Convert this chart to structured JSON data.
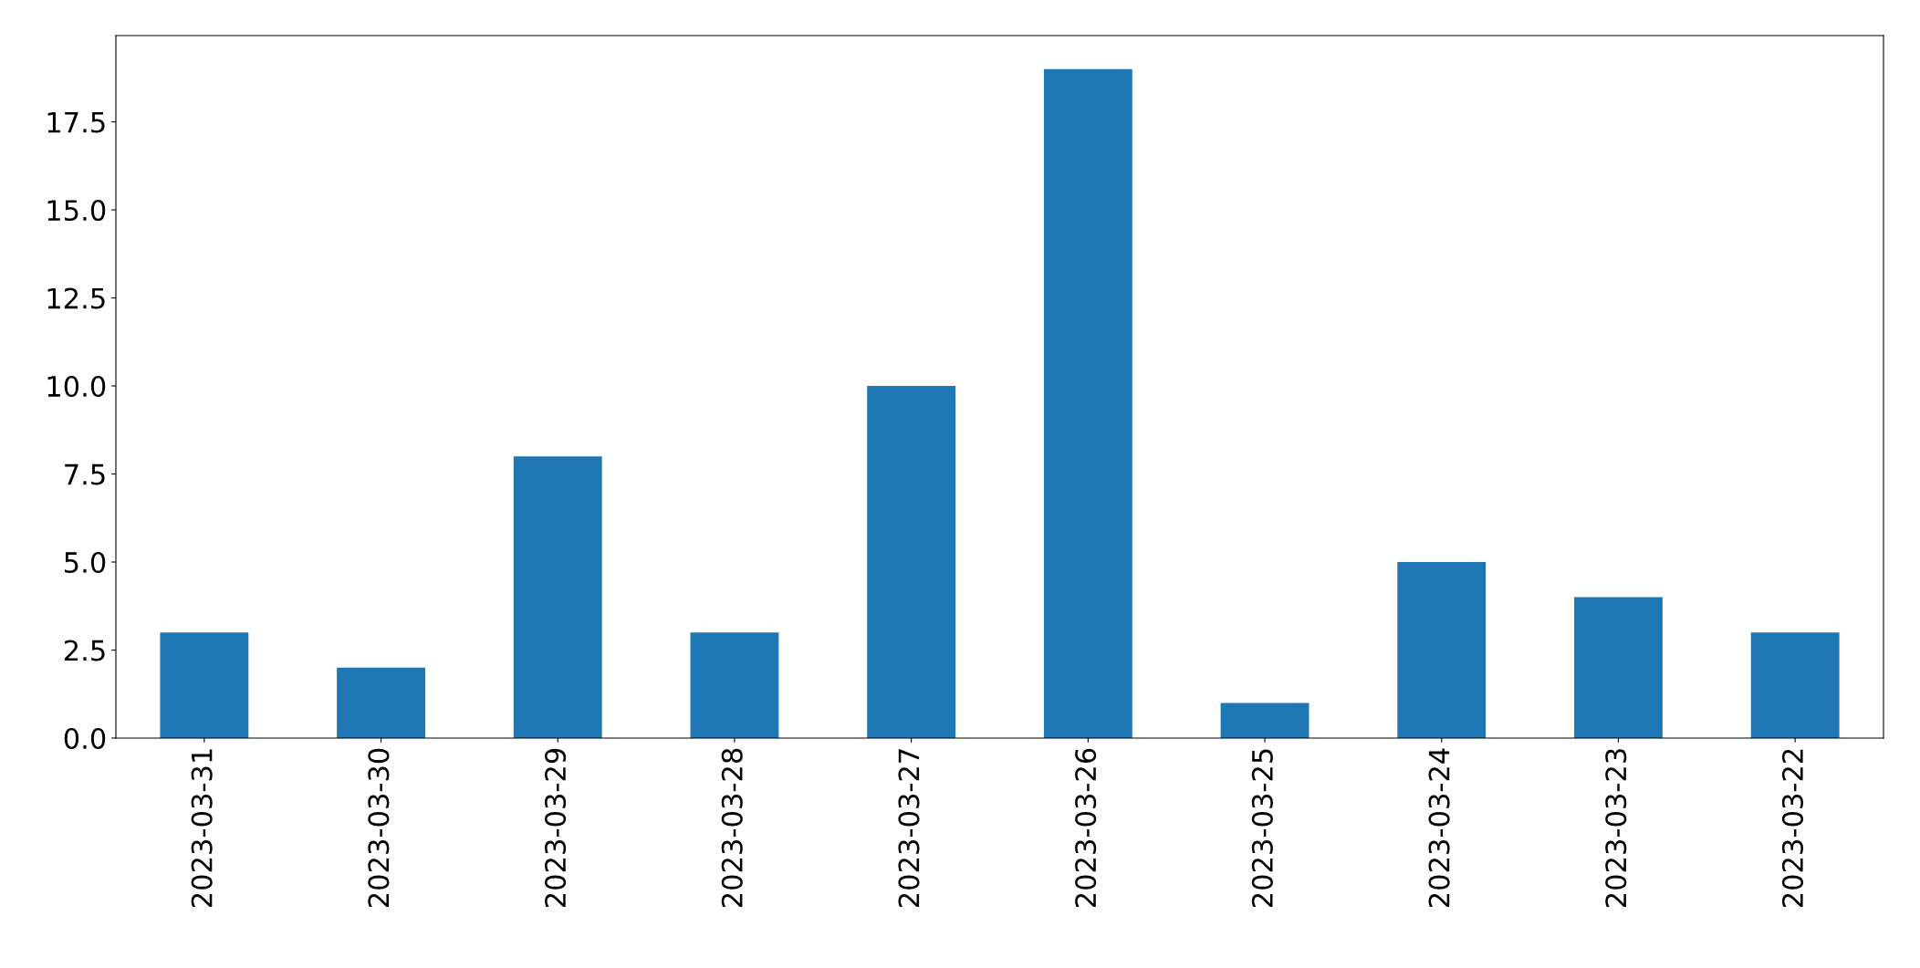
{
  "chart_data": {
    "type": "bar",
    "categories": [
      "2023-03-31",
      "2023-03-30",
      "2023-03-29",
      "2023-03-28",
      "2023-03-27",
      "2023-03-26",
      "2023-03-25",
      "2023-03-24",
      "2023-03-23",
      "2023-03-22"
    ],
    "values": [
      3,
      2,
      8,
      3,
      10,
      19,
      1,
      5,
      4,
      3
    ],
    "color": "#1f77b4",
    "ylim": [
      0,
      19.95
    ],
    "yticks": [
      {
        "value": 0,
        "label": "0.0"
      },
      2.5,
      {
        "value": 5,
        "label": "5.0"
      },
      7.5,
      {
        "value": 10,
        "label": "10.0"
      },
      12.5,
      {
        "value": 15,
        "label": "15.0"
      },
      17.5
    ],
    "grid": false
  }
}
